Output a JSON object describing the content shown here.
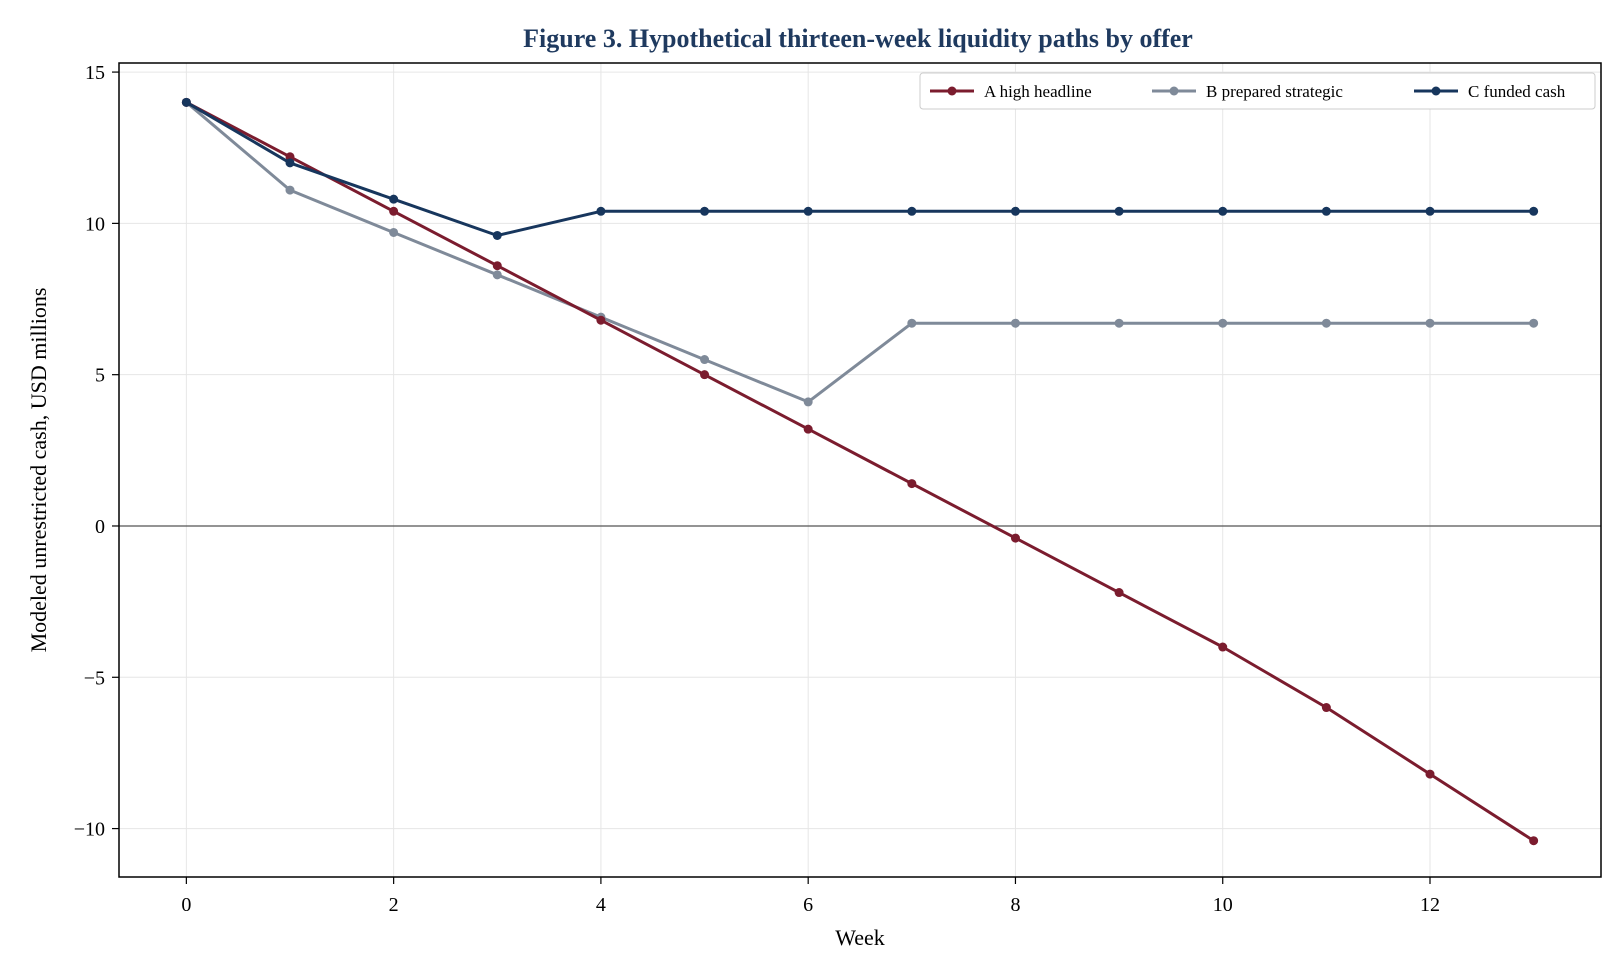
{
  "chart_data": {
    "type": "line",
    "title": "Figure 3. Hypothetical thirteen-week liquidity paths by offer",
    "xlabel": "Week",
    "ylabel": "Modeled unrestricted cash, USD millions",
    "xlim": [
      -0.65,
      13.65
    ],
    "ylim": [
      -11.6,
      15.3
    ],
    "x_ticks": [
      0,
      2,
      4,
      6,
      8,
      10,
      12
    ],
    "x_tick_labels": [
      "0",
      "2",
      "4",
      "6",
      "8",
      "10",
      "12"
    ],
    "y_ticks": [
      -10,
      -5,
      0,
      5,
      10,
      15
    ],
    "y_tick_labels": [
      "−10",
      "−5",
      "0",
      "5",
      "10",
      "15"
    ],
    "grid": true,
    "zero_line": true,
    "legend_position": "top-right",
    "x": [
      0,
      1,
      2,
      3,
      4,
      5,
      6,
      7,
      8,
      9,
      10,
      11,
      12,
      13
    ],
    "series": [
      {
        "name": "A high headline",
        "color": "#7b1c2e",
        "values": [
          14.0,
          12.2,
          10.4,
          8.6,
          6.8,
          5.0,
          3.2,
          1.4,
          -0.4,
          -2.2,
          -4.0,
          -6.0,
          -8.2,
          -10.4
        ]
      },
      {
        "name": "B prepared strategic",
        "color": "#7f8a99",
        "values": [
          14.0,
          11.1,
          9.7,
          8.3,
          6.9,
          5.5,
          4.1,
          6.7,
          6.7,
          6.7,
          6.7,
          6.7,
          6.7,
          6.7
        ]
      },
      {
        "name": "C funded cash",
        "color": "#17365d",
        "values": [
          14.0,
          12.0,
          10.8,
          9.6,
          10.4,
          10.4,
          10.4,
          10.4,
          10.4,
          10.4,
          10.4,
          10.4,
          10.4,
          10.4
        ]
      }
    ]
  },
  "colors": {
    "title": "#1f3a5f",
    "axis": "#000000",
    "zero_line": "#555555"
  }
}
